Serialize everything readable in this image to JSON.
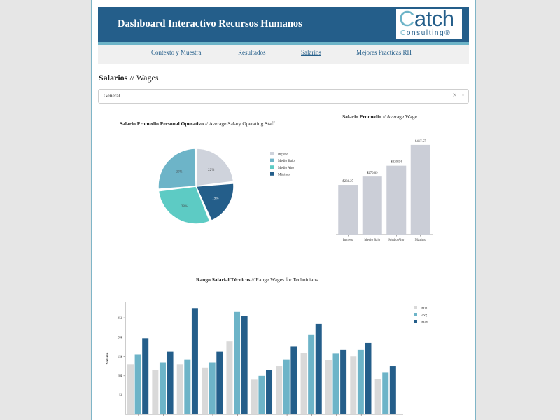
{
  "header": {
    "title": "Dashboard Interactivo Recursos Humanos",
    "logo": {
      "main_first": "C",
      "main_rest": "atch",
      "sub_first": "C",
      "sub_rest": "onsulting",
      "sub_mark": "®"
    }
  },
  "nav": {
    "items": [
      {
        "label": "Contexto y Muestra"
      },
      {
        "label": "Resultados"
      },
      {
        "label": "Salarios",
        "active": true
      },
      {
        "label": "Mejores Practicas RH"
      }
    ]
  },
  "section": {
    "title_bold": "Salarios",
    "title_rest": " // Wages"
  },
  "dropdown": {
    "value": "General",
    "clear_icon": "×",
    "arrow_icon": "⌄"
  },
  "colors": {
    "light_gray": "#cfd3dc",
    "bar_gray": "#cbced7",
    "light_blue": "#6db4c8",
    "teal": "#5dcbc4",
    "dark_blue": "#245e8a",
    "gray_bar": "#d9d9d9"
  },
  "chart_data": [
    {
      "type": "pie",
      "title_bold": "Salario Promedio Personal Operativo",
      "title_rest": " // Average Salary Operating Staff",
      "slices": [
        {
          "label": "Ingreso",
          "value": 22,
          "text": "22%"
        },
        {
          "label": "Medio Bajo",
          "value": 25,
          "text": "25%"
        },
        {
          "label": "Medio Alto",
          "value": 28,
          "text": "28%"
        },
        {
          "label": "Máximo",
          "value": 19,
          "text": "19%"
        }
      ],
      "display_order": [
        "Ingreso",
        "Máximo",
        "Medio Alto",
        "Medio Bajo"
      ],
      "legend_position": "right"
    },
    {
      "type": "bar",
      "title_bold": "Salario Promedio",
      "title_rest": " // Average Wage",
      "categories": [
        "Ingreso",
        "Medio Bajo",
        "Medio Alto",
        "Máximo"
      ],
      "values": [
        231.27,
        270.09,
        320.54,
        417.57
      ],
      "value_labels": [
        "$231.27",
        "$270.09",
        "$320.54",
        "$417.57"
      ],
      "ylim": [
        0,
        440
      ]
    },
    {
      "type": "bar",
      "title_bold": "Rango Salarial Técnicos",
      "title_rest": " // Range Wages for Technicians",
      "ylabel": "Salario",
      "yticks": [
        "5k",
        "10k",
        "15k",
        "20k",
        "25k"
      ],
      "ylim": [
        0,
        29000
      ],
      "series": [
        {
          "name": "Min",
          "values": [
            13000,
            11500,
            13000,
            12000,
            19000,
            9000,
            12500,
            15800,
            14000,
            15000,
            9200
          ]
        },
        {
          "name": "Avg",
          "values": [
            15500,
            13500,
            14200,
            13500,
            26500,
            10000,
            14200,
            20700,
            15700,
            16700,
            10800
          ]
        },
        {
          "name": "Max",
          "values": [
            19700,
            16200,
            27500,
            16200,
            25500,
            11500,
            17500,
            23400,
            16700,
            18500,
            12500
          ]
        }
      ],
      "legend_position": "top-right"
    }
  ]
}
